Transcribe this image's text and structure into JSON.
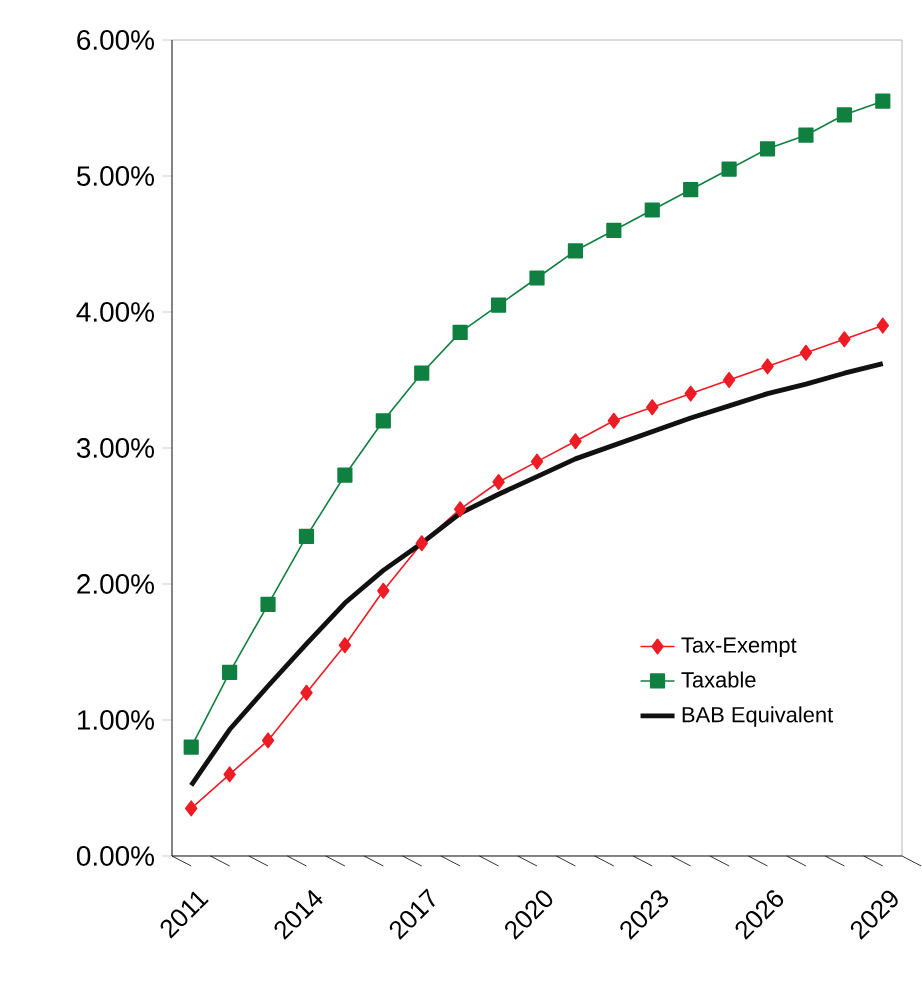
{
  "chart_data": {
    "type": "line",
    "categories": [
      "2011",
      null,
      null,
      "2014",
      null,
      null,
      "2017",
      null,
      null,
      "2020",
      null,
      null,
      "2023",
      null,
      null,
      "2026",
      null,
      null,
      "2029"
    ],
    "series": [
      {
        "name": "Tax-Exempt",
        "color": "#ee1c25",
        "marker": "diamond",
        "values": [
          0.35,
          0.6,
          0.85,
          1.2,
          1.55,
          1.95,
          2.3,
          2.55,
          2.75,
          2.9,
          3.05,
          3.2,
          3.3,
          3.4,
          3.5,
          3.6,
          3.7,
          3.8,
          3.9
        ]
      },
      {
        "name": "Taxable",
        "color": "#108040",
        "marker": "square",
        "values": [
          0.8,
          1.35,
          1.85,
          2.35,
          2.8,
          3.2,
          3.55,
          3.85,
          4.05,
          4.25,
          4.45,
          4.6,
          4.75,
          4.9,
          5.05,
          5.2,
          5.3,
          5.45,
          5.55
        ]
      },
      {
        "name": "BAB Equivalent",
        "color": "#111111",
        "marker": "none",
        "values": [
          0.52,
          0.93,
          1.25,
          1.56,
          1.86,
          2.1,
          2.3,
          2.52,
          2.66,
          2.79,
          2.92,
          3.02,
          3.12,
          3.22,
          3.31,
          3.4,
          3.47,
          3.55,
          3.62
        ]
      }
    ],
    "ylim": [
      0,
      6
    ],
    "yticks": [
      {
        "value": 0,
        "label": "0.00%"
      },
      {
        "value": 1,
        "label": "1.00%"
      },
      {
        "value": 2,
        "label": "2.00%"
      },
      {
        "value": 3,
        "label": "3.00%"
      },
      {
        "value": 4,
        "label": "4.00%"
      },
      {
        "value": 5,
        "label": "5.00%"
      },
      {
        "value": 6,
        "label": "6.00%"
      }
    ],
    "legend": "bottom right"
  }
}
